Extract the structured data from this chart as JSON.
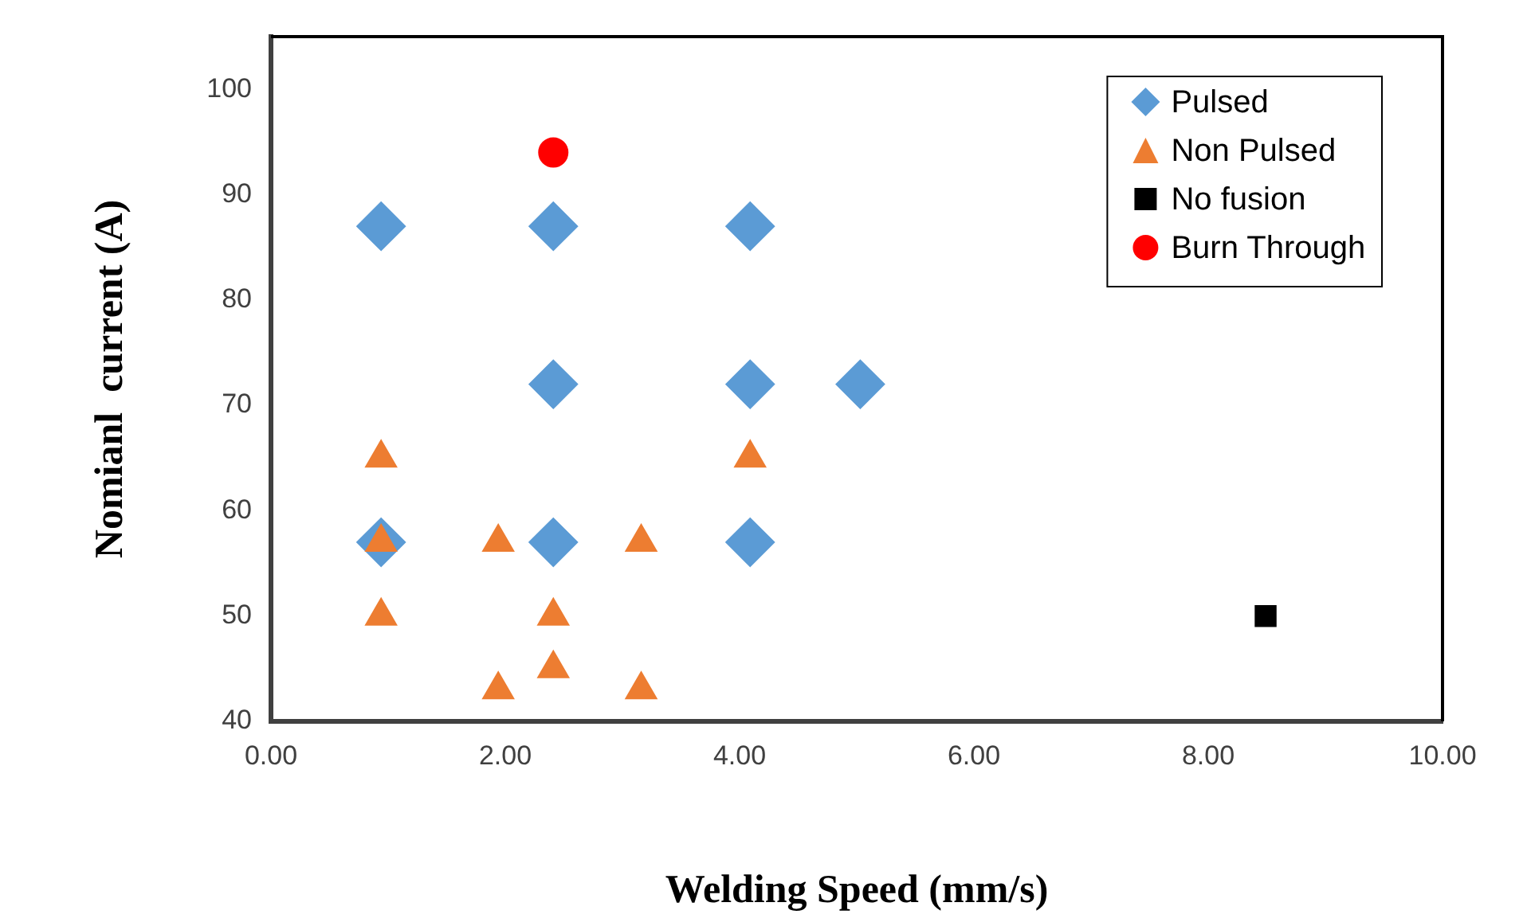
{
  "chart_data": {
    "type": "scatter",
    "xlabel": "Welding Speed (mm/s)",
    "ylabel": "Nomianl  current (A)",
    "xlim": [
      0,
      10
    ],
    "xticks": [
      {
        "value": 0,
        "label": "0.00"
      },
      {
        "value": 2,
        "label": "2.00"
      },
      {
        "value": 4,
        "label": "4.00"
      },
      {
        "value": 6,
        "label": "6.00"
      },
      {
        "value": 8,
        "label": "8.00"
      },
      {
        "value": 10,
        "label": "10.00"
      }
    ],
    "ylim": [
      40,
      105
    ],
    "yticks": [
      40,
      50,
      60,
      70,
      80,
      90,
      100
    ],
    "legend": "top right",
    "series": [
      {
        "name": "Pulsed",
        "color": "#5b9bd5",
        "marker": "diamond",
        "x": [
          0.94,
          2.41,
          4.09,
          2.41,
          4.09,
          5.03,
          0.94,
          2.41,
          4.09
        ],
        "values": [
          87,
          87,
          87,
          72,
          72,
          72,
          57,
          57,
          57
        ]
      },
      {
        "name": "Non Pulsed",
        "color": "#ed7d31",
        "marker": "triangle",
        "x": [
          0.94,
          0.94,
          0.94,
          1.94,
          1.94,
          2.41,
          2.41,
          3.16,
          3.16,
          4.09
        ],
        "values": [
          65,
          57,
          50,
          57,
          43,
          50,
          45,
          57,
          43,
          65
        ]
      },
      {
        "name": "No fusion",
        "color": "#000000",
        "marker": "square",
        "x": [
          8.49
        ],
        "values": [
          50
        ]
      },
      {
        "name": "Burn Through",
        "color": "#ff0000",
        "marker": "circle",
        "x": [
          2.41
        ],
        "values": [
          94
        ]
      }
    ]
  }
}
